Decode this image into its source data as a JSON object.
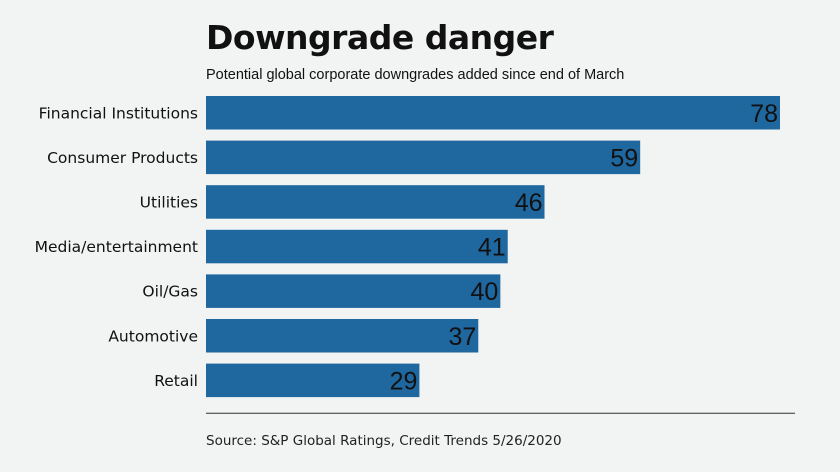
{
  "chart_data": {
    "type": "bar",
    "orientation": "horizontal",
    "title": "Downgrade danger",
    "subtitle": "Potential global corporate downgrades added since end of March",
    "source": "Source: S&P Global Ratings, Credit Trends 5/26/2020",
    "categories": [
      "Financial Institutions",
      "Consumer Products",
      "Utilities",
      "Media/entertainment",
      "Oil/Gas",
      "Automotive",
      "Retail"
    ],
    "values": [
      78,
      59,
      46,
      41,
      40,
      37,
      29
    ],
    "xlim": [
      0,
      78
    ],
    "grid": false,
    "bar_color": "#1f679f",
    "label_color": "#111111"
  }
}
